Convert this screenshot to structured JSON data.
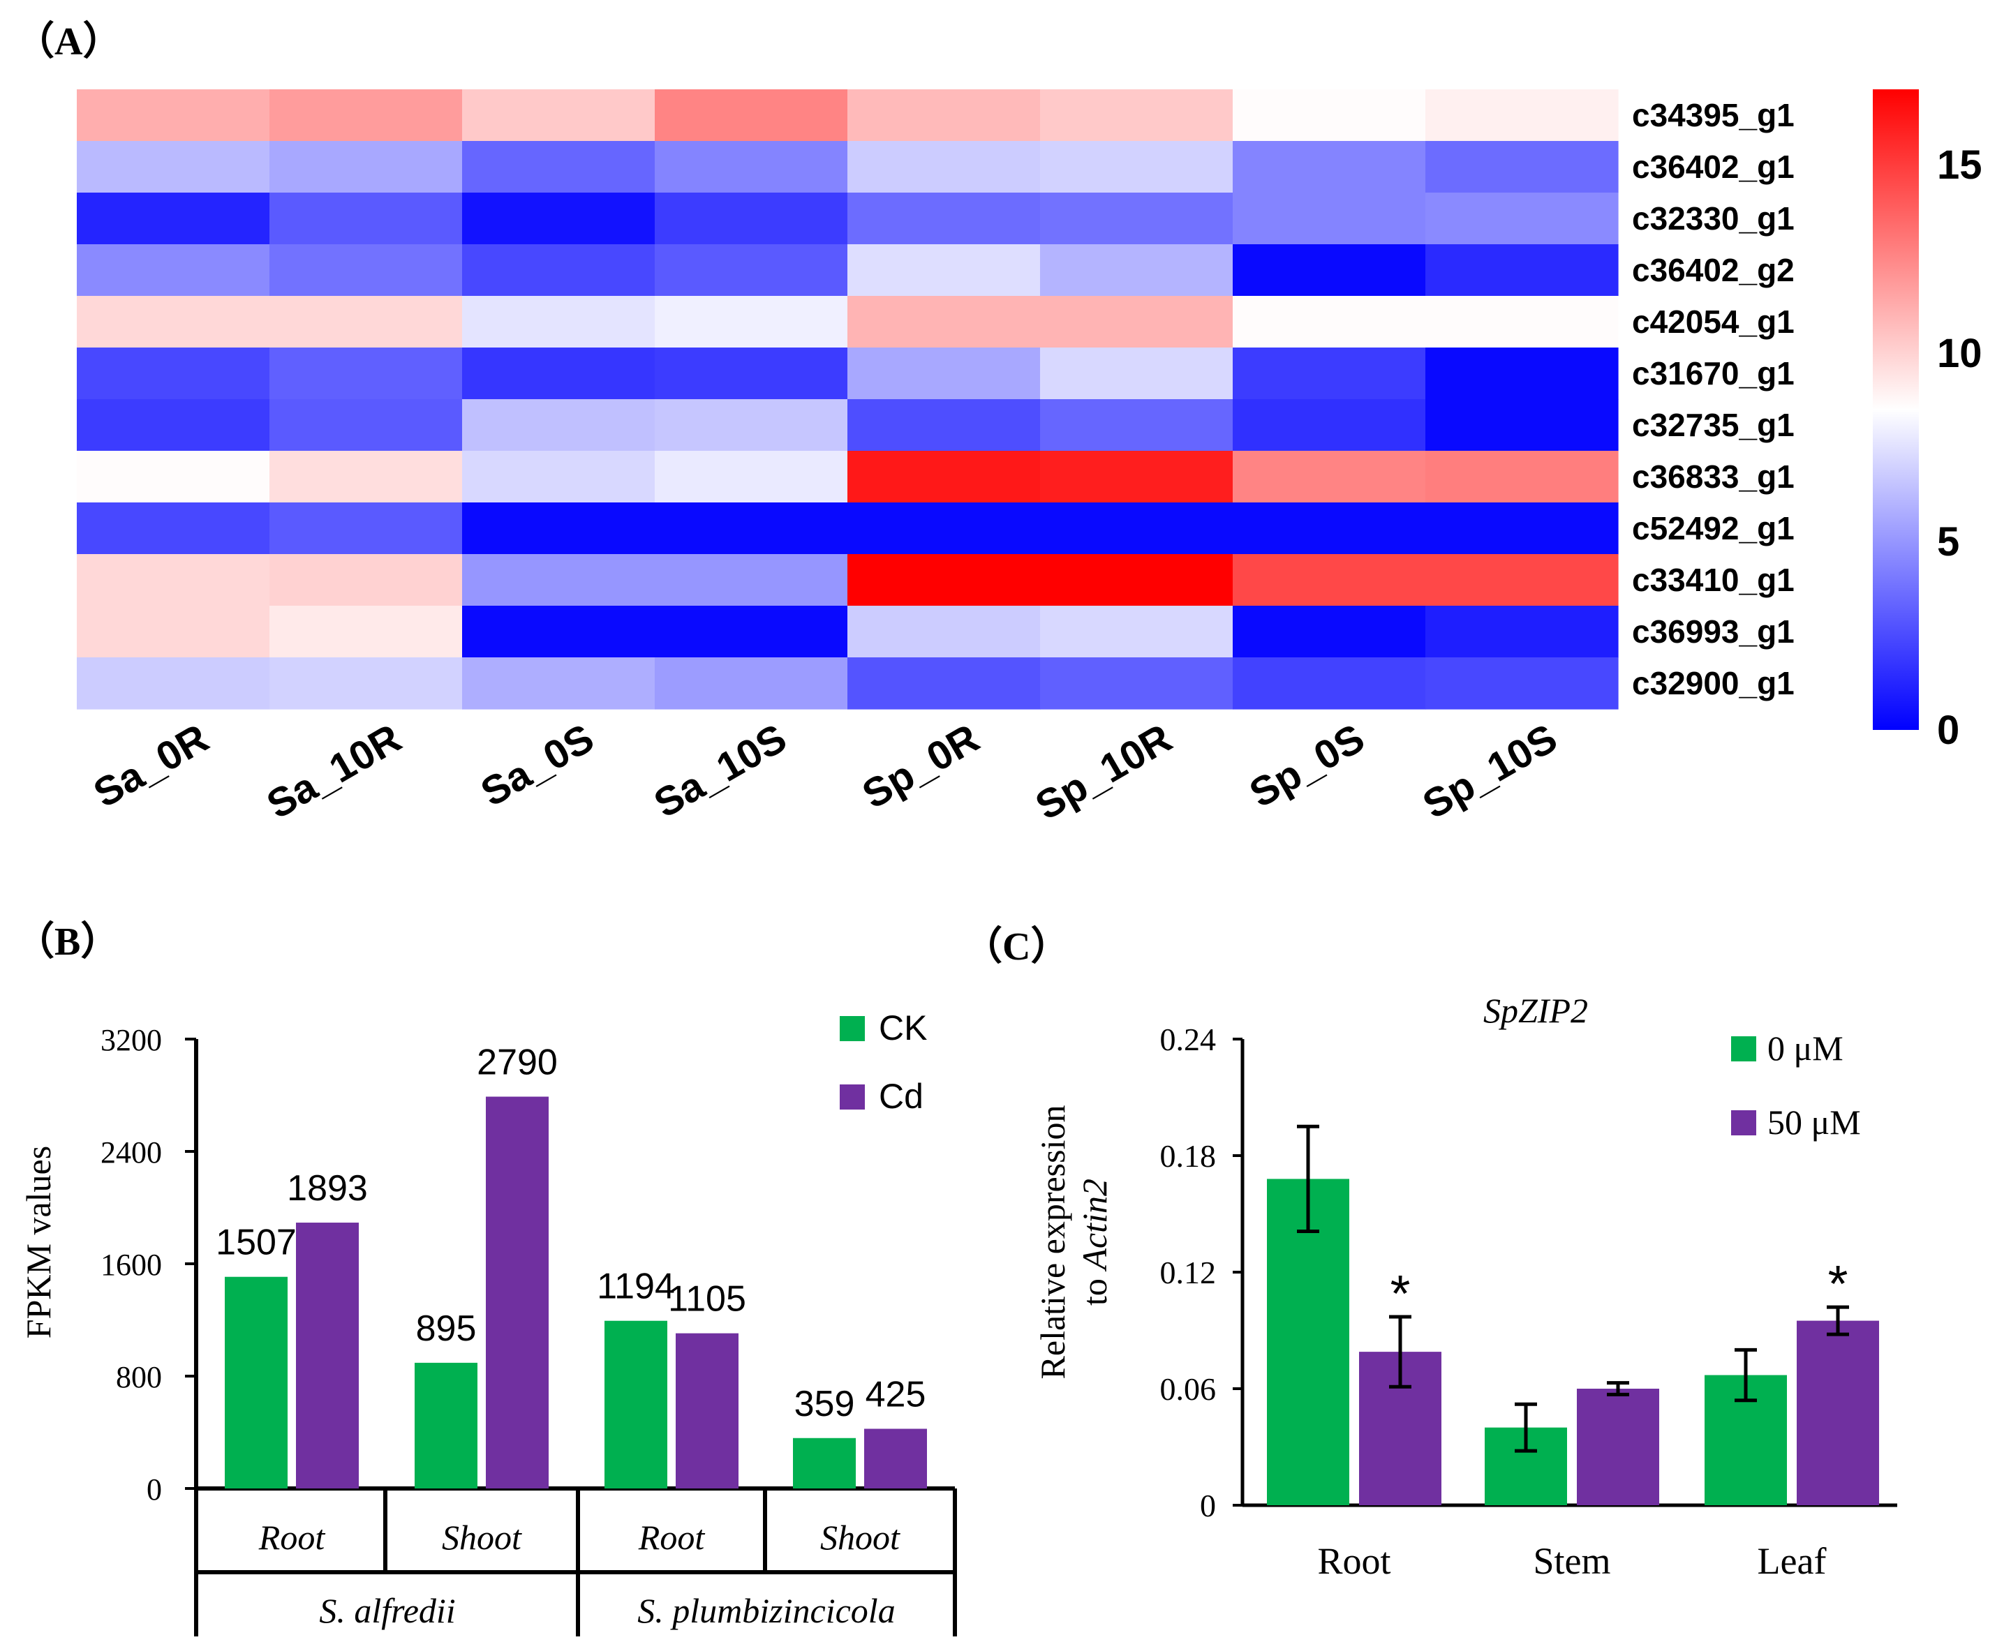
{
  "chart_data": [
    {
      "type": "heatmap",
      "panel_label": "（A）",
      "columns": [
        "Sa_0R",
        "Sa_10R",
        "Sa_0S",
        "Sa_10S",
        "Sp_0R",
        "Sp_10R",
        "Sp_0S",
        "Sp_10S"
      ],
      "rows": [
        "c34395_g1",
        "c36402_g1",
        "c32330_g1",
        "c36402_g2",
        "c42054_g1",
        "c31670_g1",
        "c32735_g1",
        "c36833_g1",
        "c52492_g1",
        "c33410_g1",
        "c36993_g1",
        "c32900_g1"
      ],
      "values": [
        [
          11.2,
          11.8,
          10.3,
          12.6,
          10.8,
          10.3,
          8.6,
          9.0
        ],
        [
          6.2,
          5.6,
          3.4,
          4.4,
          6.8,
          7.0,
          4.4,
          3.6
        ],
        [
          1.2,
          3.0,
          0.6,
          2.0,
          3.6,
          3.8,
          4.4,
          4.6
        ],
        [
          4.6,
          3.8,
          2.4,
          3.0,
          7.4,
          6.0,
          0.3,
          1.4
        ],
        [
          9.8,
          9.8,
          7.6,
          8.0,
          11.0,
          11.0,
          8.6,
          8.6
        ],
        [
          2.4,
          3.2,
          1.8,
          2.0,
          5.6,
          7.2,
          2.0,
          0.3
        ],
        [
          2.0,
          3.0,
          6.4,
          6.6,
          2.6,
          3.4,
          1.6,
          0.3
        ],
        [
          8.6,
          9.6,
          7.2,
          7.8,
          16.2,
          16.0,
          12.6,
          12.8
        ],
        [
          2.4,
          3.0,
          0.3,
          0.3,
          0.3,
          0.3,
          0.3,
          0.3
        ],
        [
          9.8,
          10.0,
          5.0,
          5.0,
          17.0,
          17.0,
          14.6,
          14.6
        ],
        [
          9.8,
          9.2,
          0.3,
          0.3,
          6.8,
          7.2,
          0.3,
          1.0
        ],
        [
          6.8,
          7.0,
          5.8,
          5.2,
          2.8,
          3.2,
          2.2,
          2.4
        ]
      ],
      "scale": {
        "min": 0,
        "max": 17,
        "ticks": [
          "0",
          "5",
          "10",
          "15"
        ],
        "colors": [
          "#0000ff",
          "#ffffff",
          "#ff0000"
        ]
      }
    },
    {
      "type": "bar",
      "panel_label": "（B）",
      "ylabel": "FPKM values",
      "ylim": [
        0,
        3200
      ],
      "yticks": [
        "0",
        "800",
        "1600",
        "2400",
        "3200"
      ],
      "categories": [
        "Root",
        "Shoot",
        "Root",
        "Shoot"
      ],
      "groups": [
        "S. alfredii",
        "S. plumbizincicola"
      ],
      "series": [
        {
          "name": "CK",
          "color": "#00b050",
          "values": [
            1507,
            895,
            1194,
            359
          ],
          "labels": [
            "1507",
            "895",
            "1194",
            "359"
          ]
        },
        {
          "name": "Cd",
          "color": "#7030a0",
          "values": [
            1893,
            2790,
            1105,
            425
          ],
          "labels": [
            "1893",
            "2790",
            "1105",
            "425"
          ]
        }
      ]
    },
    {
      "type": "bar",
      "panel_label": "（C）",
      "title": "SpZIP2",
      "ylabel_line1": "Relative expression",
      "ylabel_line2_prefix": "to ",
      "ylabel_line2_italic": "Actin2",
      "ylim": [
        0,
        0.24
      ],
      "yticks": [
        "0",
        "0.06",
        "0.12",
        "0.18",
        "0.24"
      ],
      "categories": [
        "Root",
        "Stem",
        "Leaf"
      ],
      "series": [
        {
          "name": "0 μM",
          "color": "#00b050",
          "values": [
            0.168,
            0.04,
            0.067
          ],
          "errors": [
            0.027,
            0.012,
            0.013
          ],
          "sig": [
            "",
            "",
            ""
          ]
        },
        {
          "name": "50 μM",
          "color": "#7030a0",
          "values": [
            0.079,
            0.06,
            0.095
          ],
          "errors": [
            0.018,
            0.003,
            0.007
          ],
          "sig": [
            "*",
            "",
            "*"
          ]
        }
      ]
    }
  ]
}
